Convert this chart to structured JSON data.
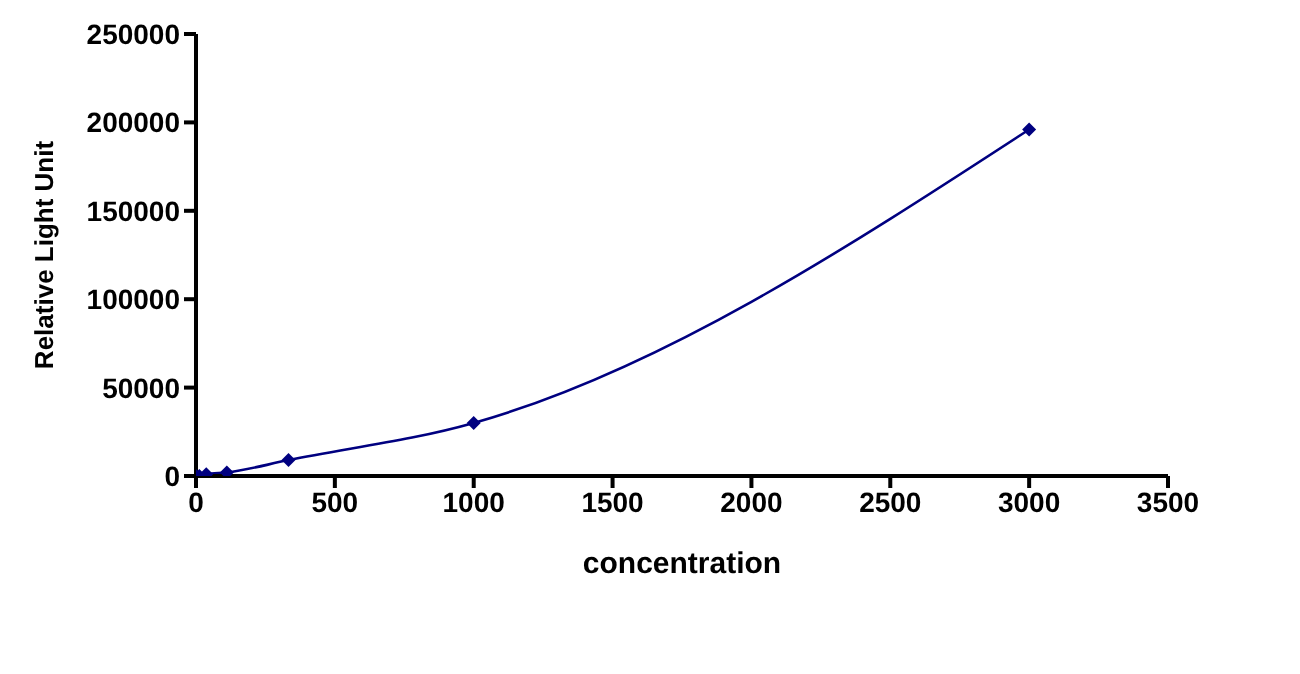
{
  "chart_data": {
    "type": "line",
    "xlabel": "concentration",
    "ylabel": "Relative Light Unit",
    "x": [
      0,
      12,
      37,
      111,
      333,
      1000,
      3000
    ],
    "series": [
      {
        "color": "#000080",
        "values": [
          0,
          0,
          1000,
          2000,
          9000,
          30000,
          196000
        ]
      }
    ],
    "xlim": [
      0,
      3500
    ],
    "xticks": [
      0,
      500,
      1000,
      1500,
      2000,
      2500,
      3000,
      3500
    ],
    "ylim": [
      0,
      250000
    ],
    "yticks": [
      0,
      50000,
      100000,
      150000,
      200000,
      250000
    ],
    "grid": false,
    "legend": false,
    "marker": "diamond",
    "line_style": "solid"
  }
}
